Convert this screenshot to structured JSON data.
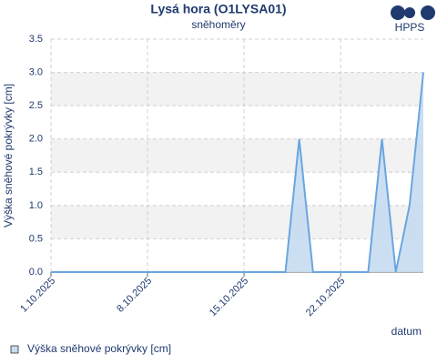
{
  "chart_data": {
    "type": "area",
    "title": "Lysá hora (O1LYSA01)",
    "subtitle": "sněhoměry",
    "logo": "HPPS",
    "ylabel": "Výška sněhové pokrývky [cm]",
    "xlabel": "datum",
    "x": [
      "2025-10-01",
      "2025-10-02",
      "2025-10-03",
      "2025-10-04",
      "2025-10-05",
      "2025-10-06",
      "2025-10-07",
      "2025-10-08",
      "2025-10-09",
      "2025-10-10",
      "2025-10-11",
      "2025-10-12",
      "2025-10-13",
      "2025-10-14",
      "2025-10-15",
      "2025-10-16",
      "2025-10-17",
      "2025-10-18",
      "2025-10-19",
      "2025-10-20",
      "2025-10-21",
      "2025-10-22",
      "2025-10-23",
      "2025-10-24",
      "2025-10-25",
      "2025-10-26",
      "2025-10-27",
      "2025-10-28"
    ],
    "series": [
      {
        "name": "Výška sněhové pokrývky [cm]",
        "color": "#6aa6e0",
        "fill": "#c6dcf1",
        "values": [
          0,
          0,
          0,
          0,
          0,
          0,
          0,
          0,
          0,
          0,
          0,
          0,
          0,
          0,
          0,
          0,
          0,
          0,
          2,
          0,
          0,
          0,
          0,
          0,
          2,
          0,
          1,
          3
        ]
      }
    ],
    "xlim": [
      "2025-10-01",
      "2025-10-28"
    ],
    "xticks": [
      {
        "value": "2025-10-01",
        "label": "1.10.2025"
      },
      {
        "value": "2025-10-08",
        "label": "8.10.2025"
      },
      {
        "value": "2025-10-15",
        "label": "15.10.2025"
      },
      {
        "value": "2025-10-22",
        "label": "22.10.2025"
      }
    ],
    "ylim": [
      0,
      3.5
    ],
    "yticks": [
      {
        "value": 0,
        "label": "0.0"
      },
      0.5,
      {
        "value": 1,
        "label": "1.0"
      },
      1.5,
      {
        "value": 2,
        "label": "2.0"
      },
      2.5,
      {
        "value": 3,
        "label": "3.0"
      },
      3.5
    ],
    "grid": true,
    "legend": "bottom-left"
  }
}
